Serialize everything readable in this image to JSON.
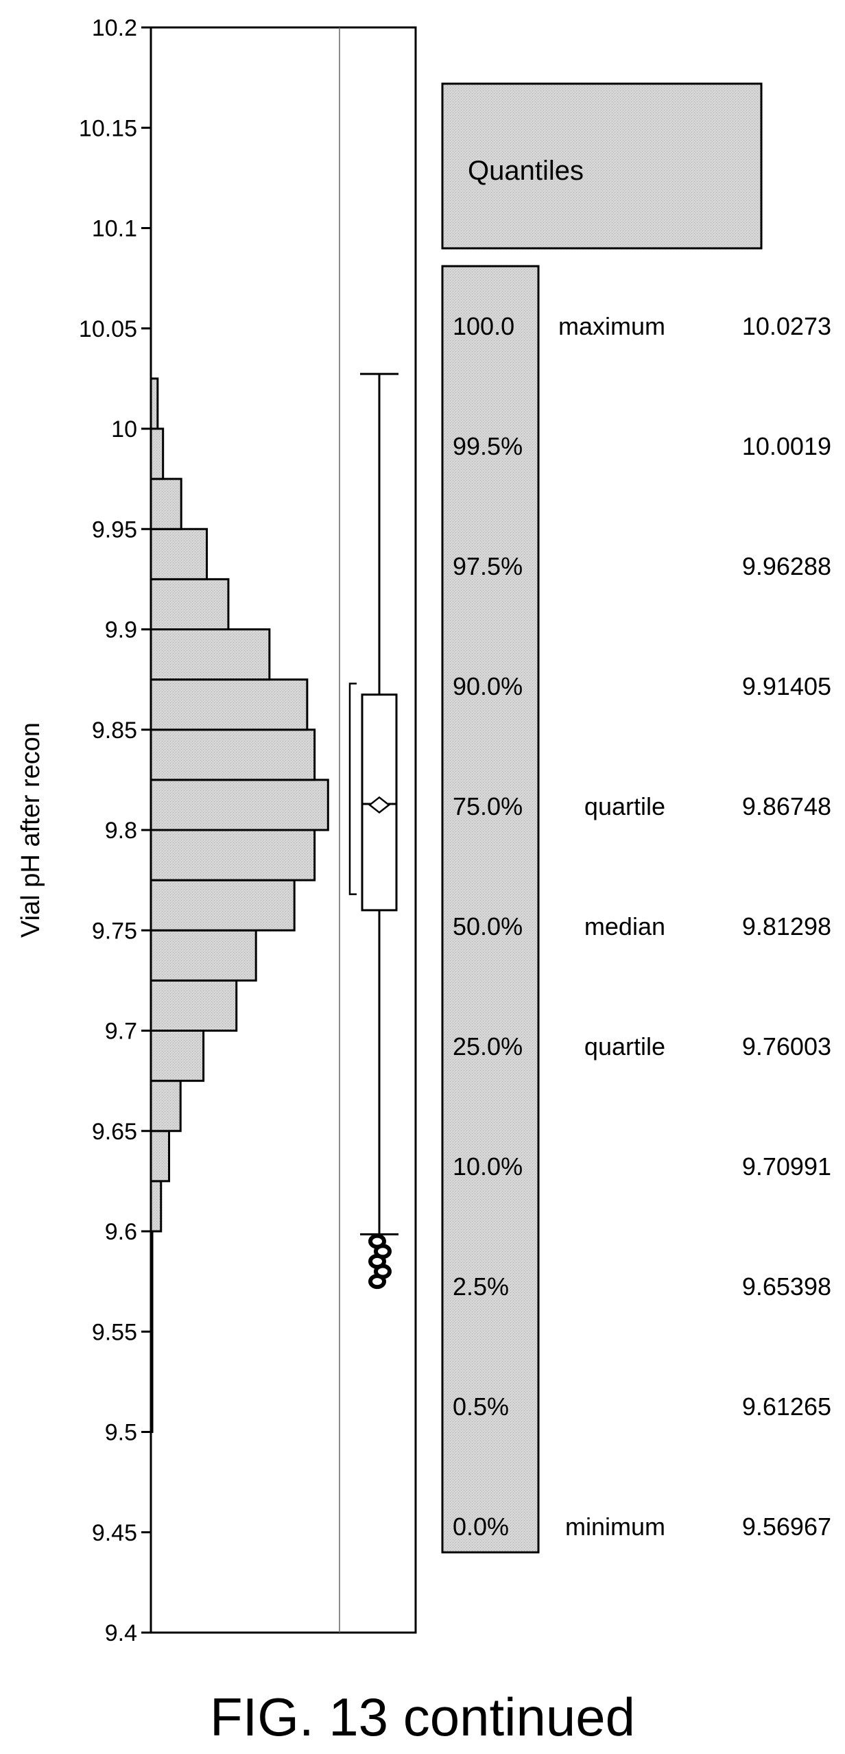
{
  "chart_data": {
    "type": "bar",
    "orientation": "horizontal-histogram",
    "ylabel": "Vial pH after recon",
    "ylim": [
      9.4,
      10.2
    ],
    "y_ticks": [
      "10.2",
      "10.15",
      "10.1",
      "10.05",
      "10",
      "9.95",
      "9.9",
      "9.85",
      "9.8",
      "9.75",
      "9.7",
      "9.65",
      "9.6",
      "9.55",
      "9.5",
      "9.45",
      "9.4"
    ],
    "grid": false,
    "histogram": {
      "bins": [
        {
          "from": 9.5,
          "to": 9.6,
          "count": 0.2
        },
        {
          "from": 9.6,
          "to": 9.625,
          "count": 1.5
        },
        {
          "from": 9.625,
          "to": 9.65,
          "count": 2.7
        },
        {
          "from": 9.65,
          "to": 9.675,
          "count": 4.4
        },
        {
          "from": 9.675,
          "to": 9.7,
          "count": 7.8
        },
        {
          "from": 9.7,
          "to": 9.725,
          "count": 12.7
        },
        {
          "from": 9.725,
          "to": 9.75,
          "count": 15.6
        },
        {
          "from": 9.75,
          "to": 9.775,
          "count": 21.3
        },
        {
          "from": 9.775,
          "to": 9.8,
          "count": 24.3
        },
        {
          "from": 9.8,
          "to": 9.825,
          "count": 26.3
        },
        {
          "from": 9.825,
          "to": 9.85,
          "count": 24.3
        },
        {
          "from": 9.85,
          "to": 9.875,
          "count": 23.2
        },
        {
          "from": 9.875,
          "to": 9.9,
          "count": 17.6
        },
        {
          "from": 9.9,
          "to": 9.925,
          "count": 11.5
        },
        {
          "from": 9.925,
          "to": 9.95,
          "count": 8.3
        },
        {
          "from": 9.95,
          "to": 9.975,
          "count": 4.5
        },
        {
          "from": 9.975,
          "to": 10.0,
          "count": 1.8
        },
        {
          "from": 10.0,
          "to": 10.025,
          "count": 1.0
        }
      ],
      "max_count": 28
    },
    "boxplot": {
      "min": 9.56967,
      "q1": 9.76003,
      "median": 9.81298,
      "mean": 9.8125,
      "q3": 9.86748,
      "whisker_low": 9.5985,
      "whisker_high": 10.0273,
      "shortest_half": [
        9.768,
        9.873
      ],
      "outliers": [
        9.575,
        9.58,
        9.585,
        9.59,
        9.595
      ]
    }
  },
  "quantiles": {
    "title": "Quantiles",
    "rows": [
      {
        "pct": "100.0",
        "label": "maximum",
        "value": "10.0273"
      },
      {
        "pct": "99.5%",
        "label": "",
        "value": "10.0019"
      },
      {
        "pct": "97.5%",
        "label": "",
        "value": "9.96288"
      },
      {
        "pct": "90.0%",
        "label": "",
        "value": "9.91405"
      },
      {
        "pct": "75.0%",
        "label": "quartile",
        "value": "9.86748"
      },
      {
        "pct": "50.0%",
        "label": "median",
        "value": "9.81298"
      },
      {
        "pct": "25.0%",
        "label": "quartile",
        "value": "9.76003"
      },
      {
        "pct": "10.0%",
        "label": "",
        "value": "9.70991"
      },
      {
        "pct": "2.5%",
        "label": "",
        "value": "9.65398"
      },
      {
        "pct": "0.5%",
        "label": "",
        "value": "9.61265"
      },
      {
        "pct": "0.0%",
        "label": "minimum",
        "value": "9.56967"
      }
    ]
  },
  "caption": "FIG. 13 continued",
  "colors": {
    "bar_fill": "#d2d2d2",
    "panel_fill": "#dcdcdc",
    "line": "#000000"
  }
}
